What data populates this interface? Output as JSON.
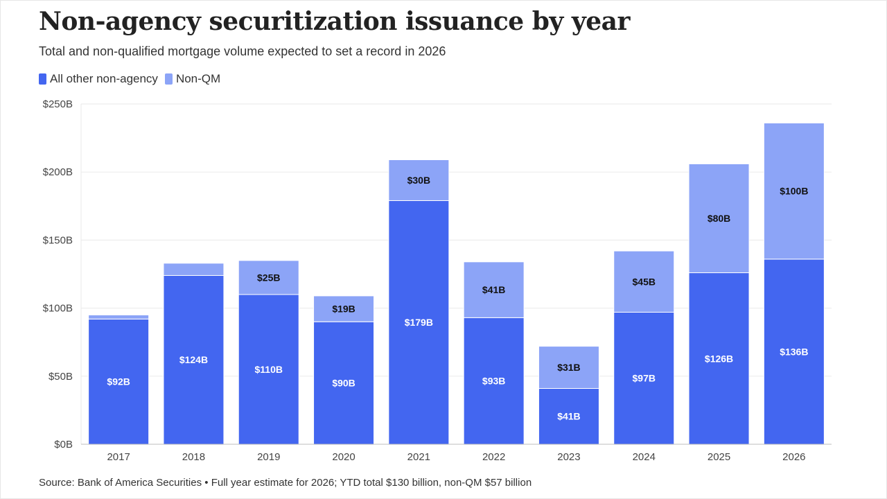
{
  "title": "Non-agency securitization issuance by year",
  "subtitle": "Total and non-qualified mortgage volume expected to set a record in 2026",
  "footer": "Source: Bank of America Securities • Full year estimate for 2026; YTD total $130 billion, non-QM $57 billion",
  "colors": {
    "other": "#4366f0",
    "nonqm": "#8ca4f7",
    "grid": "#eaeaea",
    "axis": "#bdbdbd"
  },
  "chart_data": {
    "type": "bar",
    "stacked": true,
    "categories": [
      "2017",
      "2018",
      "2019",
      "2020",
      "2021",
      "2022",
      "2023",
      "2024",
      "2025",
      "2026"
    ],
    "series": [
      {
        "name": "All other non-agency",
        "values": [
          92,
          124,
          110,
          90,
          179,
          93,
          41,
          97,
          126,
          136
        ],
        "labels": [
          "$92B",
          "$124B",
          "$110B",
          "$90B",
          "$179B",
          "$93B",
          "$41B",
          "$97B",
          "$126B",
          "$136B"
        ]
      },
      {
        "name": "Non-QM",
        "values": [
          3,
          9,
          25,
          19,
          30,
          41,
          31,
          45,
          80,
          100
        ],
        "labels": [
          "",
          "",
          "$25B",
          "$19B",
          "$30B",
          "$41B",
          "$31B",
          "$45B",
          "$80B",
          "$100B"
        ]
      }
    ],
    "ylim": [
      0,
      250
    ],
    "yticks": [
      0,
      50,
      100,
      150,
      200,
      250
    ],
    "ytick_labels": [
      "$0B",
      "$50B",
      "$100B",
      "$150B",
      "$200B",
      "$250B"
    ],
    "grid": true,
    "legend": "top-left"
  }
}
